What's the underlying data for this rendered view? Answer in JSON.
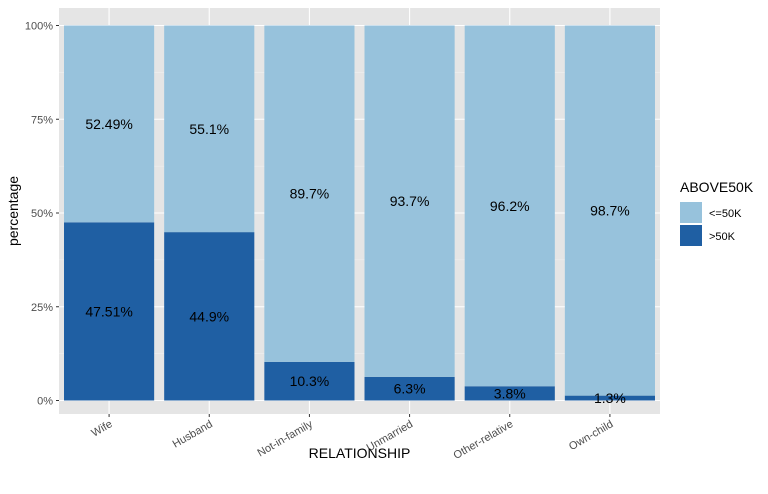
{
  "chart_data": {
    "type": "bar",
    "stacked": true,
    "xlabel": "RELATIONSHIP",
    "ylabel": "percentage",
    "ylim": [
      0,
      100
    ],
    "y_ticks": [
      "0%",
      "25%",
      "50%",
      "75%",
      "100%"
    ],
    "categories": [
      "Wife",
      "Husband",
      "Not-in-family",
      "Unmarried",
      "Other-relative",
      "Own-child"
    ],
    "series": [
      {
        "name": ">50K",
        "color": "#1f5fa3",
        "values": [
          47.51,
          44.9,
          10.3,
          6.3,
          3.8,
          1.3
        ],
        "labels": [
          "47.51%",
          "44.9%",
          "10.3%",
          "6.3%",
          "3.8%",
          "1.3%"
        ]
      },
      {
        "name": "<=50K",
        "color": "#97c2dc",
        "values": [
          52.49,
          55.1,
          89.7,
          93.7,
          96.2,
          98.7
        ],
        "labels": [
          "52.49%",
          "55.1%",
          "89.7%",
          "93.7%",
          "96.2%",
          "98.7%"
        ]
      }
    ],
    "legend": {
      "title": "ABOVE50K",
      "position": "right",
      "items": [
        {
          "label": "<=50K",
          "color": "#97c2dc"
        },
        {
          "label": ">50K",
          "color": "#1f5fa3"
        }
      ]
    },
    "grid": true,
    "panel_background": "#e5e5e5"
  }
}
